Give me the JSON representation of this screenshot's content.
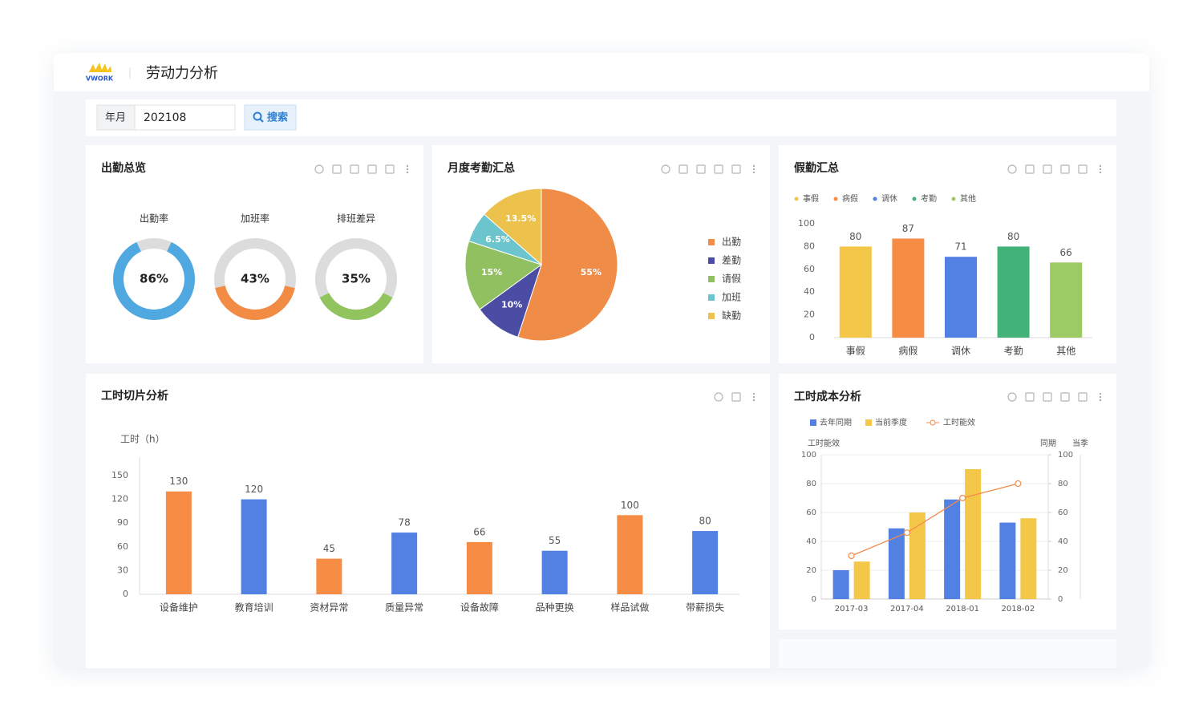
{
  "header": {
    "logo": "VWORK",
    "title": "劳动力分析"
  },
  "filter": {
    "label": "年月",
    "value": "202108",
    "button": "搜索"
  },
  "chart_data": [
    {
      "type": "donut",
      "title": "出勤总览",
      "categories": [
        "出勤率",
        "加班率",
        "排班差异"
      ],
      "values": [
        86,
        43,
        35
      ],
      "value_labels": [
        "86%",
        "43%",
        "35%"
      ],
      "colors": [
        "#4fa9e0",
        "#f28c45",
        "#91c35e"
      ]
    },
    {
      "type": "pie",
      "title": "月度考勤汇总",
      "categories": [
        "出勤",
        "差勤",
        "请假",
        "加班",
        "缺勤"
      ],
      "values": [
        55,
        10,
        15,
        6.5,
        13.5
      ],
      "value_labels": [
        "55%",
        "10%",
        "15%",
        "6.5%",
        "13.5%"
      ],
      "colors": [
        "#ef8c48",
        "#4b4da4",
        "#91c060",
        "#6cc5cc",
        "#ecc24d"
      ],
      "legend": "right"
    },
    {
      "type": "bar",
      "title": "假勤汇总",
      "categories": [
        "事假",
        "病假",
        "调休",
        "考勤",
        "其他"
      ],
      "values": [
        80,
        87,
        71,
        80,
        66
      ],
      "colors": [
        "#f5c748",
        "#f78c45",
        "#5280e3",
        "#43b27a",
        "#9dcb63"
      ],
      "ylim": [
        0,
        100
      ],
      "yticks": [
        0,
        20,
        40,
        60,
        80,
        100
      ],
      "legend": "top-left"
    },
    {
      "type": "bar",
      "title": "工时切片分析",
      "y_label": "工时（h）",
      "categories": [
        "设备维护",
        "教育培训",
        "资材异常",
        "质量异常",
        "设备故障",
        "品种更换",
        "样品试做",
        "带薪损失"
      ],
      "values": [
        130,
        120,
        45,
        78,
        66,
        55,
        100,
        80
      ],
      "colors": [
        "#f78c45",
        "#5280e3",
        "#f78c45",
        "#5280e3",
        "#f78c45",
        "#5280e3",
        "#f78c45",
        "#5280e3"
      ],
      "ylim": [
        0,
        150
      ],
      "yticks": [
        0,
        30,
        60,
        90,
        120,
        150
      ]
    },
    {
      "type": "combo",
      "title": "工时成本分析",
      "y_label": "工时能效",
      "y2_label": "同期",
      "y3_label": "当季",
      "x": [
        "2017-03",
        "2017-04",
        "2018-01",
        "2018-02"
      ],
      "series": [
        {
          "name": "去年同期",
          "type": "bar",
          "color": "#5280e3",
          "values": [
            20,
            49,
            69,
            53
          ]
        },
        {
          "name": "当前季度",
          "type": "bar",
          "color": "#f5c748",
          "values": [
            26,
            60,
            90,
            56
          ]
        },
        {
          "name": "工时能效",
          "type": "line",
          "color": "#f08c4a",
          "values": [
            30,
            46,
            70,
            80
          ]
        }
      ],
      "ylim": [
        0,
        100
      ],
      "yticks": [
        0,
        20,
        40,
        60,
        80,
        100
      ],
      "y2lim": [
        0,
        100
      ],
      "y2ticks": [
        0,
        20,
        40,
        60,
        80,
        100
      ],
      "grid": true,
      "legend": "top-left"
    }
  ]
}
